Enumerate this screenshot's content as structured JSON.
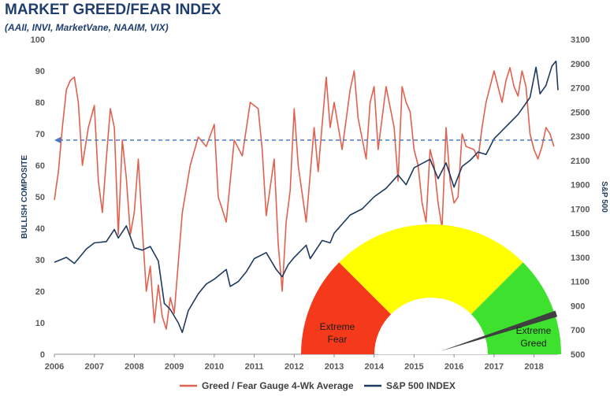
{
  "chart_data": {
    "type": "line",
    "title": "MARKET GREED/FEAR INDEX",
    "subtitle": "(AAII, INVI, MarketVane, NAAIM, VIX)",
    "ylabel_left": "BULLISH COMPOSITE",
    "ylabel_right": "S&P 500",
    "x_range": [
      2006,
      2018.6
    ],
    "ylim_left": [
      0,
      100
    ],
    "ylim_right": [
      500,
      3100
    ],
    "x_ticks": [
      "2006",
      "2007",
      "2008",
      "2009",
      "2010",
      "2011",
      "2012",
      "2013",
      "2014",
      "2015",
      "2016",
      "2017",
      "2018"
    ],
    "left_ticks": [
      "0",
      "10",
      "20",
      "30",
      "40",
      "50",
      "60",
      "70",
      "80",
      "90",
      "100"
    ],
    "right_ticks": [
      "500",
      "700",
      "900",
      "1100",
      "1300",
      "1500",
      "1700",
      "1900",
      "2100",
      "2300",
      "2500",
      "2700",
      "2900",
      "3100"
    ],
    "reference_line": {
      "value": 68,
      "style": "dashed"
    },
    "grid": false,
    "legend_position": "bottom",
    "series": [
      {
        "name": "Greed / Fear Gauge 4-Wk Average",
        "color": "#e0614f",
        "axis": "left",
        "points": [
          [
            2006.0,
            49
          ],
          [
            2006.1,
            58
          ],
          [
            2006.2,
            72
          ],
          [
            2006.3,
            84
          ],
          [
            2006.4,
            87
          ],
          [
            2006.5,
            88
          ],
          [
            2006.6,
            80
          ],
          [
            2006.7,
            60
          ],
          [
            2006.85,
            72
          ],
          [
            2007.0,
            79
          ],
          [
            2007.1,
            55
          ],
          [
            2007.2,
            45
          ],
          [
            2007.3,
            62
          ],
          [
            2007.4,
            78
          ],
          [
            2007.5,
            72
          ],
          [
            2007.6,
            38
          ],
          [
            2007.7,
            68
          ],
          [
            2007.8,
            56
          ],
          [
            2007.9,
            38
          ],
          [
            2008.0,
            45
          ],
          [
            2008.1,
            62
          ],
          [
            2008.2,
            40
          ],
          [
            2008.3,
            20
          ],
          [
            2008.4,
            28
          ],
          [
            2008.5,
            10
          ],
          [
            2008.6,
            22
          ],
          [
            2008.7,
            12
          ],
          [
            2008.8,
            8
          ],
          [
            2008.9,
            18
          ],
          [
            2009.0,
            13
          ],
          [
            2009.2,
            45
          ],
          [
            2009.4,
            60
          ],
          [
            2009.6,
            69
          ],
          [
            2009.8,
            66
          ],
          [
            2010.0,
            73
          ],
          [
            2010.1,
            50
          ],
          [
            2010.3,
            42
          ],
          [
            2010.5,
            68
          ],
          [
            2010.7,
            63
          ],
          [
            2010.9,
            80
          ],
          [
            2011.1,
            78
          ],
          [
            2011.2,
            65
          ],
          [
            2011.3,
            44
          ],
          [
            2011.5,
            62
          ],
          [
            2011.6,
            35
          ],
          [
            2011.7,
            20
          ],
          [
            2011.8,
            42
          ],
          [
            2011.9,
            52
          ],
          [
            2012.0,
            78
          ],
          [
            2012.1,
            60
          ],
          [
            2012.3,
            42
          ],
          [
            2012.5,
            72
          ],
          [
            2012.6,
            58
          ],
          [
            2012.8,
            88
          ],
          [
            2012.9,
            72
          ],
          [
            2013.0,
            80
          ],
          [
            2013.2,
            65
          ],
          [
            2013.4,
            84
          ],
          [
            2013.5,
            90
          ],
          [
            2013.6,
            75
          ],
          [
            2013.8,
            62
          ],
          [
            2013.9,
            80
          ],
          [
            2014.0,
            85
          ],
          [
            2014.1,
            65
          ],
          [
            2014.3,
            85
          ],
          [
            2014.5,
            72
          ],
          [
            2014.6,
            55
          ],
          [
            2014.7,
            85
          ],
          [
            2014.8,
            80
          ],
          [
            2014.9,
            77
          ],
          [
            2015.0,
            65
          ],
          [
            2015.1,
            60
          ],
          [
            2015.2,
            48
          ],
          [
            2015.3,
            42
          ],
          [
            2015.4,
            65
          ],
          [
            2015.5,
            60
          ],
          [
            2015.6,
            48
          ],
          [
            2015.7,
            40
          ],
          [
            2015.8,
            72
          ],
          [
            2015.9,
            55
          ],
          [
            2016.0,
            48
          ],
          [
            2016.1,
            50
          ],
          [
            2016.2,
            70
          ],
          [
            2016.3,
            66
          ],
          [
            2016.5,
            65
          ],
          [
            2016.6,
            62
          ],
          [
            2016.7,
            72
          ],
          [
            2016.8,
            80
          ],
          [
            2016.9,
            85
          ],
          [
            2017.0,
            90
          ],
          [
            2017.1,
            85
          ],
          [
            2017.2,
            80
          ],
          [
            2017.3,
            87
          ],
          [
            2017.4,
            91
          ],
          [
            2017.5,
            85
          ],
          [
            2017.6,
            82
          ],
          [
            2017.7,
            90
          ],
          [
            2017.8,
            85
          ],
          [
            2017.9,
            70
          ],
          [
            2018.0,
            65
          ],
          [
            2018.1,
            62
          ],
          [
            2018.2,
            66
          ],
          [
            2018.3,
            72
          ],
          [
            2018.4,
            70
          ],
          [
            2018.5,
            66
          ]
        ]
      },
      {
        "name": "S&P 500 INDEX",
        "color": "#1f3a5f",
        "axis": "right",
        "points": [
          [
            2006.0,
            1260
          ],
          [
            2006.3,
            1300
          ],
          [
            2006.5,
            1250
          ],
          [
            2006.8,
            1370
          ],
          [
            2007.0,
            1420
          ],
          [
            2007.3,
            1430
          ],
          [
            2007.5,
            1530
          ],
          [
            2007.6,
            1460
          ],
          [
            2007.8,
            1560
          ],
          [
            2008.0,
            1380
          ],
          [
            2008.2,
            1360
          ],
          [
            2008.4,
            1390
          ],
          [
            2008.6,
            1270
          ],
          [
            2008.75,
            920
          ],
          [
            2008.9,
            870
          ],
          [
            2009.1,
            760
          ],
          [
            2009.2,
            680
          ],
          [
            2009.35,
            860
          ],
          [
            2009.6,
            1000
          ],
          [
            2009.8,
            1080
          ],
          [
            2010.0,
            1120
          ],
          [
            2010.3,
            1200
          ],
          [
            2010.4,
            1060
          ],
          [
            2010.6,
            1100
          ],
          [
            2010.8,
            1180
          ],
          [
            2011.0,
            1290
          ],
          [
            2011.3,
            1340
          ],
          [
            2011.55,
            1200
          ],
          [
            2011.7,
            1140
          ],
          [
            2011.85,
            1240
          ],
          [
            2012.0,
            1300
          ],
          [
            2012.3,
            1400
          ],
          [
            2012.4,
            1290
          ],
          [
            2012.7,
            1440
          ],
          [
            2012.9,
            1420
          ],
          [
            2013.0,
            1500
          ],
          [
            2013.4,
            1650
          ],
          [
            2013.7,
            1700
          ],
          [
            2014.0,
            1800
          ],
          [
            2014.3,
            1870
          ],
          [
            2014.6,
            1980
          ],
          [
            2014.8,
            1900
          ],
          [
            2015.0,
            2040
          ],
          [
            2015.4,
            2110
          ],
          [
            2015.6,
            1950
          ],
          [
            2015.8,
            2080
          ],
          [
            2016.0,
            1880
          ],
          [
            2016.2,
            2050
          ],
          [
            2016.4,
            2100
          ],
          [
            2016.6,
            2170
          ],
          [
            2016.8,
            2150
          ],
          [
            2017.0,
            2280
          ],
          [
            2017.3,
            2380
          ],
          [
            2017.6,
            2480
          ],
          [
            2017.9,
            2620
          ],
          [
            2018.05,
            2870
          ],
          [
            2018.15,
            2650
          ],
          [
            2018.3,
            2720
          ],
          [
            2018.45,
            2880
          ],
          [
            2018.55,
            2920
          ],
          [
            2018.6,
            2680
          ]
        ]
      }
    ],
    "gauge": {
      "labels": [
        "Extreme Fear",
        "Extreme Greed"
      ],
      "colors": {
        "fear": "#f43a1b",
        "neutral": "#ffff00",
        "greed": "#3ee12e",
        "needle": "#404040",
        "inner": "#ffffff"
      },
      "needle_value": 0.9
    }
  }
}
